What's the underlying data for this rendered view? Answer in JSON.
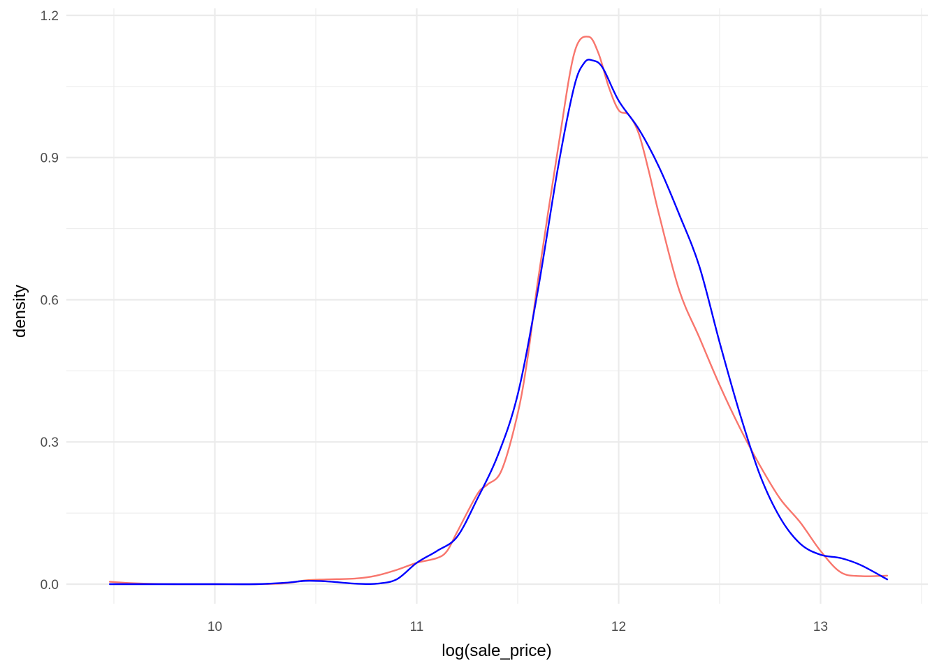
{
  "chart_data": {
    "type": "line",
    "title": "",
    "xlabel": "log(sale_price)",
    "ylabel": "density",
    "xlim": [
      9.45,
      13.35
    ],
    "ylim": [
      0.0,
      1.2
    ],
    "x_ticks": [
      10,
      11,
      12,
      13
    ],
    "x_tick_labels": [
      "10",
      "11",
      "12",
      "13"
    ],
    "x_minor_ticks": [
      9.5,
      10.5,
      11.5,
      12.5,
      13.5
    ],
    "y_ticks": [
      0.0,
      0.3,
      0.6,
      0.9,
      1.2
    ],
    "y_tick_labels": [
      "0.0",
      "0.3",
      "0.6",
      "0.9",
      "1.2"
    ],
    "y_minor_ticks": [
      0.15,
      0.45,
      0.75,
      1.05
    ],
    "grid": true,
    "legend": "none",
    "series": [
      {
        "color": "#f8766d",
        "x": [
          9.48,
          9.6,
          9.8,
          10.0,
          10.2,
          10.35,
          10.45,
          10.55,
          10.7,
          10.8,
          10.9,
          11.0,
          11.1,
          11.15,
          11.2,
          11.3,
          11.35,
          11.42,
          11.5,
          11.55,
          11.6,
          11.7,
          11.78,
          11.85,
          11.9,
          11.95,
          12.0,
          12.05,
          12.1,
          12.15,
          12.2,
          12.3,
          12.4,
          12.5,
          12.6,
          12.7,
          12.8,
          12.9,
          13.0,
          13.1,
          13.2,
          13.33
        ],
        "y": [
          0.005,
          0.002,
          0.0,
          0.0,
          0.0,
          0.002,
          0.008,
          0.01,
          0.012,
          0.018,
          0.03,
          0.045,
          0.055,
          0.07,
          0.11,
          0.19,
          0.21,
          0.24,
          0.36,
          0.48,
          0.64,
          0.92,
          1.12,
          1.155,
          1.12,
          1.05,
          1.0,
          0.99,
          0.95,
          0.87,
          0.78,
          0.62,
          0.52,
          0.42,
          0.33,
          0.25,
          0.18,
          0.13,
          0.07,
          0.025,
          0.017,
          0.018
        ]
      },
      {
        "color": "#0000ff",
        "x": [
          9.48,
          9.6,
          9.8,
          10.0,
          10.2,
          10.35,
          10.45,
          10.55,
          10.7,
          10.8,
          10.9,
          11.0,
          11.1,
          11.2,
          11.3,
          11.4,
          11.5,
          11.6,
          11.7,
          11.78,
          11.83,
          11.87,
          11.92,
          12.0,
          12.1,
          12.2,
          12.3,
          12.4,
          12.5,
          12.6,
          12.7,
          12.8,
          12.9,
          13.0,
          13.1,
          13.2,
          13.33
        ],
        "y": [
          0.0,
          0.0,
          0.0,
          0.0,
          0.0,
          0.003,
          0.007,
          0.006,
          0.001,
          0.001,
          0.01,
          0.045,
          0.07,
          0.1,
          0.18,
          0.27,
          0.4,
          0.62,
          0.88,
          1.05,
          1.1,
          1.105,
          1.09,
          1.02,
          0.96,
          0.88,
          0.78,
          0.67,
          0.51,
          0.36,
          0.23,
          0.14,
          0.085,
          0.062,
          0.055,
          0.04,
          0.01
        ]
      }
    ]
  }
}
